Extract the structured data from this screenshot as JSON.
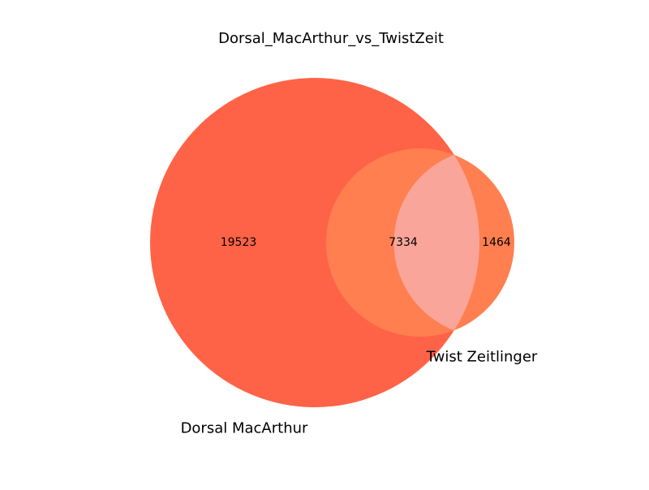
{
  "chart_data": {
    "type": "venn",
    "title": "Dorsal_MacArthur_vs_TwistZeit",
    "sets": [
      {
        "name": "Dorsal MacArthur",
        "color": "#ff6347"
      },
      {
        "name": "Twist Zeitlinger",
        "color": "#ff7f50"
      }
    ],
    "regions": {
      "only_a": 19523,
      "intersection": 7334,
      "only_b": 1464
    },
    "intersection_color": "#faa59a"
  }
}
